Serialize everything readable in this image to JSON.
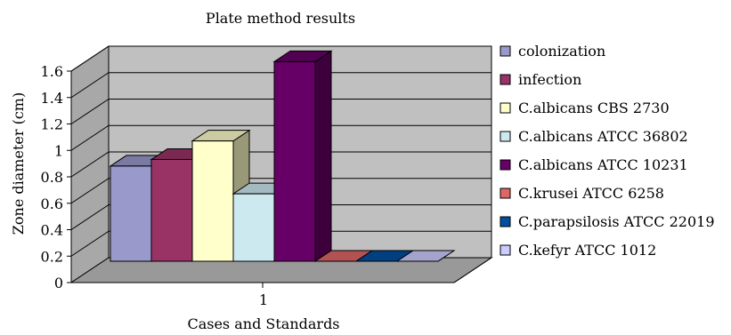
{
  "chart_data": {
    "type": "bar",
    "style": "3d-clustered",
    "title": "Plate method results",
    "xlabel": "Cases and Standards",
    "ylabel": "Zone diameter (cm)",
    "categories": [
      "1"
    ],
    "ylim": [
      0,
      1.6
    ],
    "yticks": [
      "0",
      "0.2",
      "0.4",
      "0.6",
      "0.8",
      "1",
      "1.2",
      "1.4",
      "1.6"
    ],
    "grid": true,
    "legend_position": "right",
    "series": [
      {
        "name": "colonization",
        "values": [
          0.72
        ],
        "color": "#9999cc"
      },
      {
        "name": "infection",
        "values": [
          0.77
        ],
        "color": "#993366"
      },
      {
        "name": "C.albicans CBS 2730",
        "values": [
          0.91
        ],
        "color": "#ffffcc"
      },
      {
        "name": "C.albicans ATCC 36802",
        "values": [
          0.51
        ],
        "color": "#cce9f0"
      },
      {
        "name": "C.albicans ATCC 10231",
        "values": [
          1.51
        ],
        "color": "#660066"
      },
      {
        "name": "C.krusei ATCC 6258",
        "values": [
          0
        ],
        "color": "#e06666"
      },
      {
        "name": "C.parapsilosis ATCC 22019",
        "values": [
          0
        ],
        "color": "#0050a0"
      },
      {
        "name": "C.kefyr ATCC 1012",
        "values": [
          0
        ],
        "color": "#ccccff"
      }
    ],
    "colors": {
      "wall": "#c0c0c0",
      "floor": "#999999",
      "gridline": "#000000"
    }
  }
}
